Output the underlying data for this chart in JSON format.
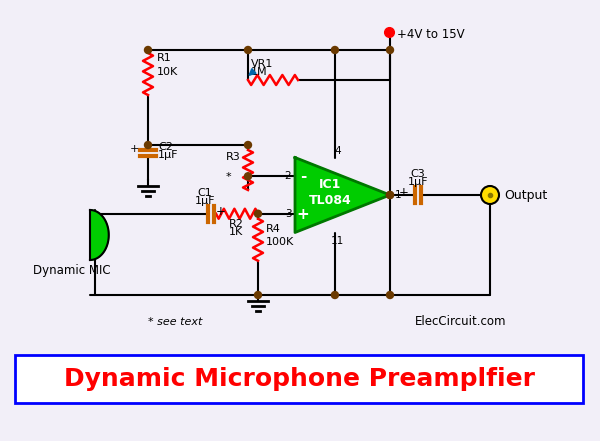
{
  "title": "Dynamic Microphone Preamplfier",
  "title_color": "#ff0000",
  "title_box_color": "#0000ff",
  "background_color": "#f2eff8",
  "wire_color": "#000000",
  "resistor_color": "#ff0000",
  "capacitor_color": "#cc6600",
  "node_color": "#6b3a00",
  "opamp_fill": "#00cc00",
  "opamp_edge": "#007700",
  "mic_color": "#00cc00",
  "vr1_arrow_color": "#006699",
  "output_circle_fill": "#ffdd00",
  "output_circle_edge": "#000000",
  "text_color": "#000000",
  "label_color": "#000000",
  "watermark": "ElecCircuit.com",
  "see_text": "* see text",
  "supply_label": "+4V to 15V",
  "supply_dot_color": "#ff0000",
  "title_fontsize": 18,
  "label_fontsize": 8,
  "pin_fontsize": 7.5
}
